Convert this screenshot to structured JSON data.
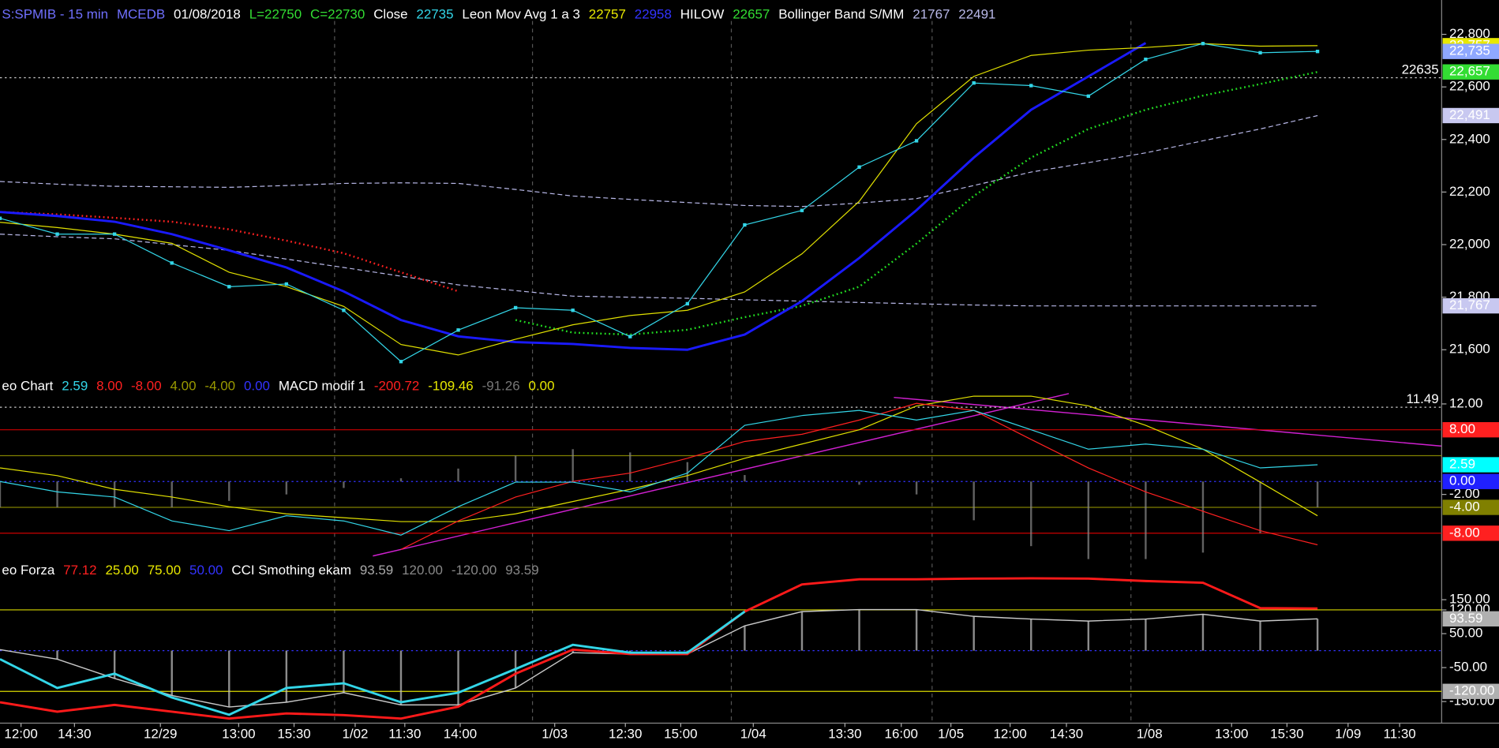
{
  "chart_data": [
    {
      "type": "line",
      "legend": [
        {
          "text": "S:SPMIB - 15 min",
          "color": "#7070ff"
        },
        {
          "text": "MCEDB",
          "color": "#7070ff"
        },
        {
          "text": "01/08/2018",
          "color": "#ffffff"
        },
        {
          "text": "L=22750",
          "color": "#33dd33"
        },
        {
          "text": "C=22730",
          "color": "#33dd33"
        },
        {
          "text": "Close",
          "color": "#ffffff"
        },
        {
          "text": "22735",
          "color": "#33d6e8"
        },
        {
          "text": "Leon Mov Avg 1 a 3",
          "color": "#ffffff"
        },
        {
          "text": "22757",
          "color": "#e8e800"
        },
        {
          "text": "22958",
          "color": "#3333ff"
        },
        {
          "text": "HILOW",
          "color": "#ffffff"
        },
        {
          "text": "22657",
          "color": "#33dd33"
        },
        {
          "text": "Bollinger Band S/MM",
          "color": "#ffffff"
        },
        {
          "text": "21767",
          "color": "#b8b8e8"
        },
        {
          "text": "22491",
          "color": "#b8b8e8"
        }
      ],
      "x": [
        0,
        6,
        12,
        18,
        24,
        30,
        36,
        42,
        48,
        54,
        60,
        66,
        72,
        78,
        84,
        90,
        96,
        102,
        108,
        114,
        120,
        126,
        132,
        138
      ],
      "xlim": [
        0,
        151
      ],
      "ylim": [
        21495,
        22898
      ],
      "yticks": [
        {
          "value": 22800,
          "label": "22,800"
        },
        {
          "value": 22600,
          "label": "22,600"
        },
        {
          "value": 22400,
          "label": "22,400"
        },
        {
          "value": 22200,
          "label": "22,200"
        },
        {
          "value": 22000,
          "label": "22,000"
        },
        {
          "value": 21800,
          "label": "21,800"
        },
        {
          "value": 21600,
          "label": "21,600"
        }
      ],
      "markers": [
        {
          "value": 22757,
          "label": "22,757",
          "color": "#e8e800"
        },
        {
          "value": 22735,
          "label": "22,735",
          "color": "#8fa8ff"
        },
        {
          "value": 22657,
          "label": "22,657",
          "color": "#33dd33"
        },
        {
          "value": 22491,
          "label": "22,491",
          "color": "#c8c8f0"
        },
        {
          "value": 21767,
          "label": "21,767",
          "color": "#c8c8f0"
        }
      ],
      "ref_lines": [
        {
          "value": 22635
        }
      ],
      "series": [
        {
          "color": "#b8b8e8",
          "style": "dashed",
          "values": [
            22240,
            22230,
            22222,
            22220,
            22218,
            22225,
            22233,
            22235,
            22233,
            22210,
            22185,
            22172,
            22160,
            22149,
            22145,
            22158,
            22175,
            22225,
            22276,
            22312,
            22349,
            22395,
            22440,
            22491
          ]
        },
        {
          "color": "#b8b8e8",
          "style": "dashed",
          "values": [
            22040,
            22030,
            22022,
            22000,
            21978,
            21945,
            21913,
            21880,
            21847,
            21825,
            21804,
            21800,
            21796,
            21790,
            21785,
            21780,
            21775,
            21770,
            21767,
            21767,
            21767,
            21767,
            21767,
            21767
          ]
        },
        {
          "color": "#ff2020",
          "style": "dotted",
          "values": [
            22124,
            22115,
            22102,
            22087,
            22058,
            22015,
            21967,
            21895,
            21822,
            null,
            null,
            null,
            null,
            null,
            null,
            null,
            null,
            null,
            null,
            null,
            null,
            null,
            null,
            null
          ]
        },
        {
          "color": "#22dd22",
          "style": "dotted",
          "values": [
            null,
            null,
            null,
            null,
            null,
            null,
            null,
            null,
            null,
            21713,
            21665,
            21658,
            21676,
            21724,
            21767,
            21840,
            22004,
            22185,
            22331,
            22440,
            22513,
            22567,
            22611,
            22657
          ]
        },
        {
          "color": "#1a1aff",
          "style": "thick",
          "values": [
            22124,
            22109,
            22087,
            22040,
            21978,
            21913,
            21822,
            21713,
            21651,
            21629,
            21622,
            21607,
            21600,
            21658,
            21785,
            21949,
            22131,
            22331,
            22513,
            22640,
            22767,
            null,
            null,
            null
          ]
        },
        {
          "color": "#e0e000",
          "style": "line",
          "values": [
            22085,
            22065,
            22040,
            22005,
            21895,
            21840,
            21765,
            21620,
            21580,
            21640,
            21695,
            21730,
            21750,
            21820,
            21965,
            22165,
            22460,
            22640,
            22720,
            22740,
            22750,
            22765,
            22755,
            22757
          ]
        },
        {
          "color": "#33d6e8",
          "style": "dots",
          "values": [
            22100,
            22040,
            22040,
            21930,
            21840,
            21850,
            21750,
            21555,
            21675,
            21760,
            21750,
            21650,
            21775,
            22075,
            22130,
            22295,
            22395,
            22615,
            22605,
            22565,
            22705,
            22765,
            22730,
            22735
          ]
        }
      ]
    },
    {
      "type": "line",
      "legend": [
        {
          "text": "eo Chart",
          "color": "#ffffff"
        },
        {
          "text": "2.59",
          "color": "#33d6e8"
        },
        {
          "text": "8.00",
          "color": "#ff2020"
        },
        {
          "text": "-8.00",
          "color": "#ff2020"
        },
        {
          "text": "4.00",
          "color": "#9a9a00"
        },
        {
          "text": "-4.00",
          "color": "#9a9a00"
        },
        {
          "text": "0.00",
          "color": "#3333ff"
        },
        {
          "text": "MACD modif 1",
          "color": "#ffffff"
        },
        {
          "text": "-200.72",
          "color": "#ff2020"
        },
        {
          "text": "-109.46",
          "color": "#e8e800"
        },
        {
          "text": "-91.26",
          "color": "#777777"
        },
        {
          "text": "0.00",
          "color": "#e8e800"
        }
      ],
      "x": [
        0,
        6,
        12,
        18,
        24,
        30,
        36,
        42,
        48,
        54,
        60,
        66,
        72,
        78,
        84,
        90,
        96,
        102,
        108,
        114,
        120,
        126,
        132,
        138
      ],
      "xlim": [
        0,
        151
      ],
      "ylim": [
        -13.0,
        13.6
      ],
      "yticks": [
        {
          "value": 12,
          "label": "12.00"
        },
        {
          "value": -2,
          "label": "-2.00"
        }
      ],
      "levels": [
        {
          "value": 8,
          "color": "#cc0000"
        },
        {
          "value": 4,
          "color": "#808000"
        },
        {
          "value": 0,
          "color": "#3333ff"
        },
        {
          "value": -4,
          "color": "#808000"
        },
        {
          "value": -8,
          "color": "#cc0000"
        }
      ],
      "markers": [
        {
          "value": 8,
          "label": "8.00",
          "color": "#ff2020"
        },
        {
          "value": 2.59,
          "label": "2.59",
          "color": "#00ffff"
        },
        {
          "value": 0,
          "label": "0.00",
          "color": "#2020ff"
        },
        {
          "value": -4,
          "label": "-4.00",
          "color": "#808000"
        },
        {
          "value": -8,
          "label": "-8.00",
          "color": "#ff2020"
        }
      ],
      "ref_lines": [
        {
          "value": 11.49
        }
      ],
      "series": [
        {
          "color": "#8a8a8a",
          "style": "bars",
          "values": [
            -4,
            -4,
            -4,
            -4,
            -3,
            -2,
            -1,
            0.5,
            2,
            4,
            5,
            4.5,
            3,
            1,
            0,
            -0.5,
            -2,
            -6,
            -10,
            -12,
            -12,
            -11,
            -8,
            -4
          ]
        },
        {
          "color": "#e0e000",
          "style": "line",
          "values": [
            2.1,
            0.9,
            -1.2,
            -2.4,
            -3.9,
            -5,
            -5.6,
            -6.2,
            -6.2,
            -5,
            -3.1,
            -1.2,
            0.9,
            3.6,
            5.8,
            8,
            11.7,
            13.2,
            13.2,
            11.7,
            8.7,
            5,
            -0.1,
            -5.3
          ]
        },
        {
          "color": "#ff2020",
          "style": "line",
          "values": [
            null,
            null,
            null,
            null,
            null,
            null,
            null,
            -10.5,
            -6.1,
            -2.4,
            0,
            1.3,
            3.6,
            6.2,
            7.3,
            9.5,
            12.1,
            11,
            6.5,
            2.1,
            -1.6,
            -4.6,
            -7.6,
            -9.8
          ]
        },
        {
          "color": "#33d6e8",
          "style": "line",
          "values": [
            0,
            -1.6,
            -2.4,
            -6.1,
            -7.6,
            -5.3,
            -6.1,
            -8.3,
            -3.9,
            -0.1,
            -0.1,
            -1.6,
            1.3,
            8.7,
            10.2,
            11,
            9.5,
            11,
            8,
            5,
            5.8,
            5,
            2.1,
            2.59
          ]
        }
      ]
    },
    {
      "type": "line",
      "legend": [
        {
          "text": "eo Forza",
          "color": "#ffffff"
        },
        {
          "text": "77.12",
          "color": "#ff2020"
        },
        {
          "text": "25.00",
          "color": "#e8e800"
        },
        {
          "text": "75.00",
          "color": "#e8e800"
        },
        {
          "text": "50.00",
          "color": "#3333ff"
        },
        {
          "text": "CCI Smothing ekam",
          "color": "#ffffff"
        },
        {
          "text": "93.59",
          "color": "#aaaaaa"
        },
        {
          "text": "120.00",
          "color": "#888888"
        },
        {
          "text": "-120.00",
          "color": "#888888"
        },
        {
          "text": "93.59",
          "color": "#888888"
        }
      ],
      "x": [
        0,
        6,
        12,
        18,
        24,
        30,
        36,
        42,
        48,
        54,
        60,
        66,
        72,
        78,
        84,
        90,
        96,
        102,
        108,
        114,
        120,
        126,
        132,
        138
      ],
      "xlim": [
        0,
        151
      ],
      "xticks": [
        {
          "value": 2.2,
          "label": "12:00"
        },
        {
          "value": 7.8,
          "label": "14:30"
        },
        {
          "value": 16.8,
          "label": "12/29"
        },
        {
          "value": 25.0,
          "label": "13:00"
        },
        {
          "value": 30.8,
          "label": "15:30"
        },
        {
          "value": 37.2,
          "label": "1/02"
        },
        {
          "value": 42.4,
          "label": "11:30"
        },
        {
          "value": 48.2,
          "label": "14:00"
        },
        {
          "value": 58.1,
          "label": "1/03"
        },
        {
          "value": 65.5,
          "label": "12:30"
        },
        {
          "value": 71.3,
          "label": "15:00"
        },
        {
          "value": 78.9,
          "label": "1/04"
        },
        {
          "value": 88.5,
          "label": "13:30"
        },
        {
          "value": 94.4,
          "label": "16:00"
        },
        {
          "value": 99.6,
          "label": "1/05"
        },
        {
          "value": 105.8,
          "label": "12:00"
        },
        {
          "value": 111.7,
          "label": "14:30"
        },
        {
          "value": 120.4,
          "label": "1/08"
        },
        {
          "value": 129.0,
          "label": "13:00"
        },
        {
          "value": 134.8,
          "label": "15:30"
        },
        {
          "value": 141.2,
          "label": "1/09"
        },
        {
          "value": 146.6,
          "label": "11:30"
        }
      ],
      "ylim": [
        -208,
        214
      ],
      "yticks": [
        {
          "value": 150,
          "label": "150.00"
        },
        {
          "value": 120,
          "label": "120.00"
        },
        {
          "value": 50,
          "label": "50.00"
        },
        {
          "value": -50,
          "label": "-50.00"
        },
        {
          "value": -150,
          "label": "-150.00"
        }
      ],
      "levels": [
        {
          "value": 120,
          "color": "#d8d800"
        },
        {
          "value": 0,
          "color": "#3333ff"
        },
        {
          "value": -120,
          "color": "#d8d800"
        }
      ],
      "markers": [
        {
          "value": 93.59,
          "label": "93.59",
          "color": "#b0b0b0"
        },
        {
          "value": -120,
          "label": "-120.00",
          "color": "#b0b0b0"
        }
      ],
      "series": [
        {
          "color": "#c8c8c8",
          "style": "histline",
          "values": [
            3,
            -25,
            -82,
            -132,
            -166,
            -152,
            -124,
            -160,
            -160,
            -110,
            -6,
            -10,
            -10,
            73,
            115,
            121,
            121,
            101,
            93,
            87,
            93,
            107,
            87,
            93.59
          ]
        },
        {
          "color": "#ff1a1a",
          "style": "thick",
          "values": [
            -152,
            -180,
            -160,
            -180,
            -200,
            -185,
            -190,
            -200,
            -165,
            -68,
            3,
            -10,
            -10,
            115,
            195,
            210,
            210,
            212,
            213,
            212,
            205,
            200,
            125,
            124
          ]
        },
        {
          "color": "#33d6e8",
          "style": "thick",
          "values": [
            -25,
            -110,
            -68,
            -138,
            -189,
            -110,
            -96,
            -152,
            -124,
            -54,
            17,
            -6,
            -6,
            115,
            null,
            null,
            null,
            null,
            null,
            null,
            null,
            null,
            null,
            null
          ]
        }
      ]
    }
  ]
}
